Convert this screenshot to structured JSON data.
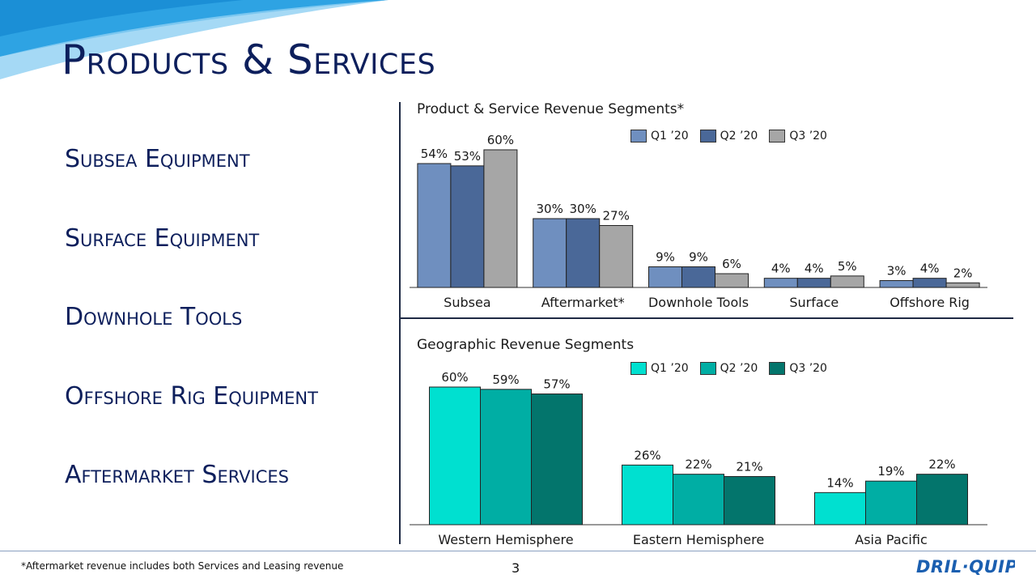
{
  "title": "Products & Services",
  "segments": [
    "Subsea Equipment",
    "Surface Equipment",
    "Downhole Tools",
    "Offshore Rig Equipment",
    "Aftermarket Services"
  ],
  "footnote": "*Aftermarket revenue includes both Services and Leasing revenue",
  "page_number": "3",
  "logo_text": "DRIL-QUIP",
  "chart_data": [
    {
      "type": "bar",
      "title": "Product & Service Revenue Segments*",
      "categories": [
        "Subsea",
        "Aftermarket*",
        "Downhole Tools",
        "Surface",
        "Offshore Rig"
      ],
      "series": [
        {
          "name": "Q1 ’20",
          "values": [
            54,
            30,
            9,
            4,
            3
          ],
          "color": "#6f8fbf"
        },
        {
          "name": "Q2 ’20",
          "values": [
            53,
            30,
            9,
            4,
            4
          ],
          "color": "#4a6898"
        },
        {
          "name": "Q3 ’20",
          "values": [
            60,
            27,
            6,
            5,
            2
          ],
          "color": "#a6a6a6"
        }
      ],
      "unit": "%",
      "ylim": [
        0,
        60
      ],
      "legend": "top-right"
    },
    {
      "type": "bar",
      "title": "Geographic Revenue Segments",
      "categories": [
        "Western Hemisphere",
        "Eastern Hemisphere",
        "Asia Pacific"
      ],
      "series": [
        {
          "name": "Q1 ’20",
          "values": [
            60,
            26,
            14
          ],
          "color": "#00e0d0"
        },
        {
          "name": "Q2 ’20",
          "values": [
            59,
            22,
            19
          ],
          "color": "#00aea4"
        },
        {
          "name": "Q3 ’20",
          "values": [
            57,
            21,
            22
          ],
          "color": "#03756c"
        }
      ],
      "unit": "%",
      "ylim": [
        0,
        60
      ],
      "legend": "top-right"
    }
  ]
}
